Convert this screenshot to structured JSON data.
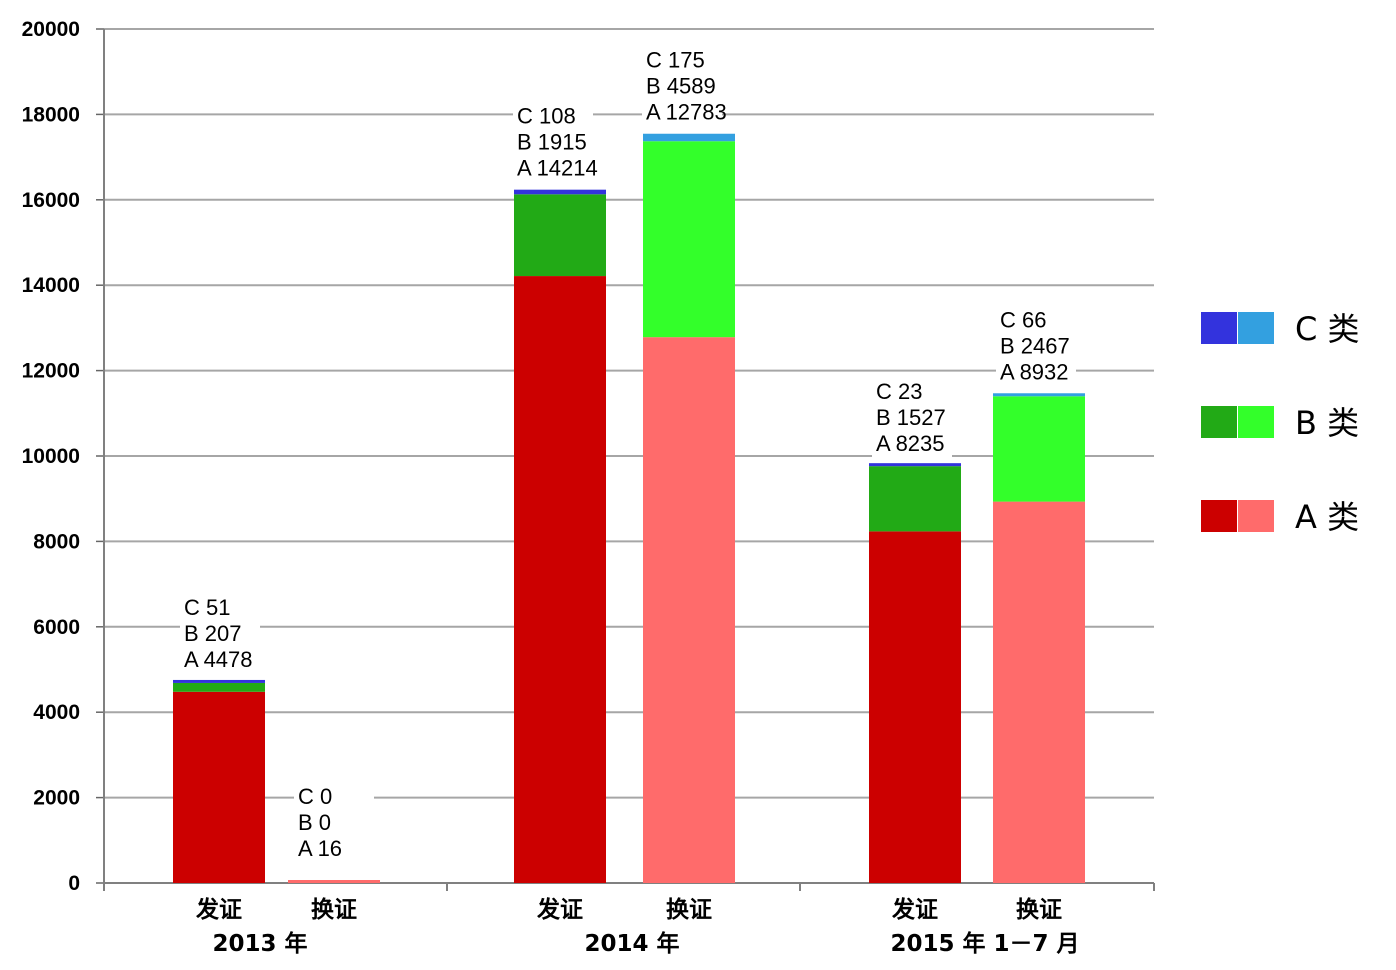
{
  "chart_data": {
    "type": "bar",
    "stacked": true,
    "title": "",
    "xlabel": "",
    "ylabel": "",
    "ylim": [
      0,
      20000
    ],
    "yticks": [
      0,
      2000,
      4000,
      6000,
      8000,
      10000,
      12000,
      14000,
      16000,
      18000,
      20000
    ],
    "grid": true,
    "legend_position": "right",
    "groups": [
      "2013 年",
      "2014 年",
      "2015 年 1－7 月"
    ],
    "categories": [
      "发证",
      "换证"
    ],
    "stack_order": [
      "A",
      "B",
      "C"
    ],
    "bars": [
      {
        "group": 0,
        "category": "发证",
        "kind": "issue",
        "values": {
          "A": 4478,
          "B": 207,
          "C": 51
        },
        "labels": [
          "C 51",
          "B 207",
          "A 4478"
        ]
      },
      {
        "group": 0,
        "category": "换证",
        "kind": "renew",
        "values": {
          "A": 16,
          "B": 0,
          "C": 0
        },
        "labels": [
          "C 0",
          "B 0",
          "A 16"
        ]
      },
      {
        "group": 1,
        "category": "发证",
        "kind": "issue",
        "values": {
          "A": 14214,
          "B": 1915,
          "C": 108
        },
        "labels": [
          "C 108",
          "B 1915",
          "A 14214"
        ]
      },
      {
        "group": 1,
        "category": "换证",
        "kind": "renew",
        "values": {
          "A": 12783,
          "B": 4589,
          "C": 175
        },
        "labels": [
          "C 175",
          "B 4589",
          "A 12783"
        ]
      },
      {
        "group": 2,
        "category": "发证",
        "kind": "issue",
        "values": {
          "A": 8235,
          "B": 1527,
          "C": 23
        },
        "labels": [
          "C 23",
          "B 1527",
          "A 8235"
        ]
      },
      {
        "group": 2,
        "category": "换证",
        "kind": "renew",
        "values": {
          "A": 8932,
          "B": 2467,
          "C": 66
        },
        "labels": [
          "C 66",
          "B 2467",
          "A 8932"
        ]
      }
    ],
    "colors": {
      "issue": {
        "A": "#cc0000",
        "B": "#22aa16",
        "C": "#3333dd"
      },
      "renew": {
        "A": "#ff6b6b",
        "B": "#33ff2a",
        "C": "#33a0e0"
      }
    },
    "legend": [
      {
        "key": "C",
        "label": "C 类"
      },
      {
        "key": "B",
        "label": "B 类"
      },
      {
        "key": "A",
        "label": "A 类"
      }
    ]
  }
}
